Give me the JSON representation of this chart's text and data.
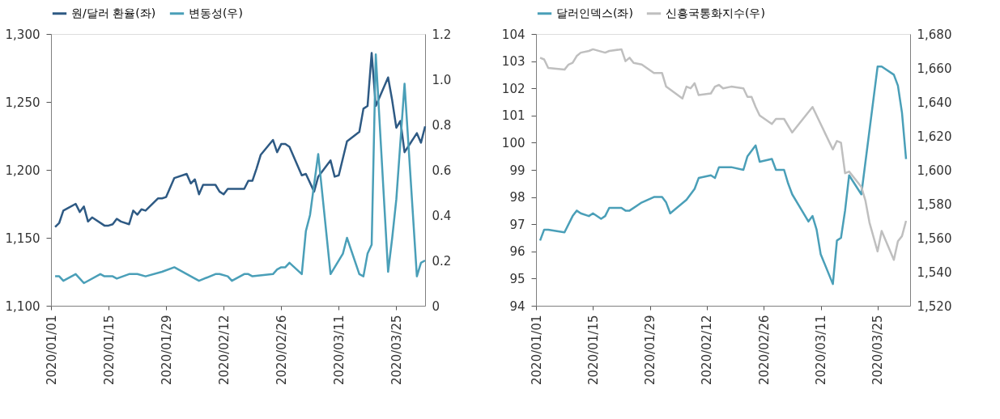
{
  "chart_data": [
    {
      "type": "line",
      "legend": "top",
      "grid": false,
      "marker": "none",
      "line_style": "solid",
      "xlim": [
        "2020-01-01",
        "2020-04-01"
      ],
      "xticks": [
        {
          "value": "2020-01-01",
          "label": "2020/01/01"
        },
        {
          "value": "2020-01-15",
          "label": "2020/01/15"
        },
        {
          "value": "2020-01-29",
          "label": "2020/01/29"
        },
        {
          "value": "2020-02-12",
          "label": "2020/02/12"
        },
        {
          "value": "2020-02-26",
          "label": "2020/02/26"
        },
        {
          "value": "2020-03-11",
          "label": "2020/03/11"
        },
        {
          "value": "2020-03-25",
          "label": "2020/03/25"
        }
      ],
      "ylim": [
        1100,
        1300
      ],
      "yticks": [
        {
          "value": 1100,
          "label": "1,100"
        },
        {
          "value": 1150,
          "label": "1,150"
        },
        {
          "value": 1200,
          "label": "1,200"
        },
        {
          "value": 1250,
          "label": "1,250"
        },
        {
          "value": 1300,
          "label": "1,300"
        }
      ],
      "y2lim": [
        0,
        1.2
      ],
      "y2ticks": [
        0,
        0.2,
        0.4,
        0.6,
        0.8,
        {
          "value": 1,
          "label": "1.0"
        },
        1.2
      ],
      "series": [
        {
          "name": "원/달러 환율(좌)",
          "color": "#2e5a84",
          "axis": "y",
          "x": [
            "2020-01-02",
            "2020-01-03",
            "2020-01-04",
            "2020-01-07",
            "2020-01-08",
            "2020-01-09",
            "2020-01-10",
            "2020-01-11",
            "2020-01-14",
            "2020-01-15",
            "2020-01-16",
            "2020-01-17",
            "2020-01-18",
            "2020-01-20",
            "2020-01-21",
            "2020-01-22",
            "2020-01-23",
            "2020-01-24",
            "2020-01-27",
            "2020-01-28",
            "2020-01-29",
            "2020-01-30",
            "2020-01-31",
            "2020-02-03",
            "2020-02-04",
            "2020-02-05",
            "2020-02-06",
            "2020-02-07",
            "2020-02-10",
            "2020-02-11",
            "2020-02-12",
            "2020-02-13",
            "2020-02-17",
            "2020-02-18",
            "2020-02-19",
            "2020-02-20",
            "2020-02-21",
            "2020-02-24",
            "2020-02-25",
            "2020-02-26",
            "2020-02-27",
            "2020-02-28",
            "2020-03-02",
            "2020-03-03",
            "2020-03-05",
            "2020-03-06",
            "2020-03-09",
            "2020-03-10",
            "2020-03-11",
            "2020-03-13",
            "2020-03-16",
            "2020-03-17",
            "2020-03-18",
            "2020-03-19",
            "2020-03-20",
            "2020-03-23",
            "2020-03-24",
            "2020-03-25",
            "2020-03-26",
            "2020-03-27",
            "2020-03-30",
            "2020-03-31",
            "2020-04-01"
          ],
          "values": [
            1158,
            1161,
            1170,
            1175,
            1169,
            1173,
            1162,
            1165,
            1159,
            1159,
            1160,
            1164,
            1162,
            1160,
            1170,
            1167,
            1171,
            1170,
            1179,
            1179,
            1180,
            1187,
            1194,
            1197,
            1190,
            1193,
            1182,
            1189,
            1189,
            1184,
            1182,
            1186,
            1186,
            1192,
            1192,
            1201,
            1211,
            1222,
            1213,
            1219,
            1219,
            1217,
            1196,
            1197,
            1184,
            1195,
            1207,
            1195,
            1196,
            1221,
            1228,
            1245,
            1247,
            1286,
            1247,
            1268,
            1251,
            1231,
            1236,
            1213,
            1227,
            1220,
            1232
          ]
        },
        {
          "name": "변동성(우)",
          "color": "#4a9fb8",
          "axis": "y2",
          "x": [
            "2020-01-02",
            "2020-01-03",
            "2020-01-04",
            "2020-01-07",
            "2020-01-08",
            "2020-01-09",
            "2020-01-13",
            "2020-01-14",
            "2020-01-16",
            "2020-01-17",
            "2020-01-20",
            "2020-01-21",
            "2020-01-22",
            "2020-01-24",
            "2020-01-28",
            "2020-01-31",
            "2020-02-05",
            "2020-02-06",
            "2020-02-10",
            "2020-02-11",
            "2020-02-13",
            "2020-02-14",
            "2020-02-17",
            "2020-02-18",
            "2020-02-19",
            "2020-02-24",
            "2020-02-25",
            "2020-02-26",
            "2020-02-27",
            "2020-02-28",
            "2020-03-02",
            "2020-03-03",
            "2020-03-04",
            "2020-03-06",
            "2020-03-09",
            "2020-03-12",
            "2020-03-13",
            "2020-03-16",
            "2020-03-17",
            "2020-03-18",
            "2020-03-19",
            "2020-03-20",
            "2020-03-23",
            "2020-03-24",
            "2020-03-25",
            "2020-03-27",
            "2020-03-30",
            "2020-03-31",
            "2020-04-01"
          ],
          "values": [
            0.13,
            0.13,
            0.11,
            0.14,
            0.12,
            0.1,
            0.14,
            0.13,
            0.13,
            0.12,
            0.14,
            0.14,
            0.14,
            0.13,
            0.15,
            0.17,
            0.12,
            0.11,
            0.14,
            0.14,
            0.13,
            0.11,
            0.14,
            0.14,
            0.13,
            0.14,
            0.16,
            0.17,
            0.17,
            0.19,
            0.14,
            0.33,
            0.4,
            0.67,
            0.14,
            0.23,
            0.3,
            0.14,
            0.13,
            0.23,
            0.27,
            1.11,
            0.15,
            0.3,
            0.47,
            0.98,
            0.13,
            0.19,
            0.2
          ]
        }
      ]
    },
    {
      "type": "line",
      "legend": "top",
      "grid": false,
      "marker": "none",
      "line_style": "solid",
      "xlim": [
        "2020-01-01",
        "2020-04-02"
      ],
      "xticks": [
        {
          "value": "2020-01-01",
          "label": "2020/01/01"
        },
        {
          "value": "2020-01-15",
          "label": "2020/01/15"
        },
        {
          "value": "2020-01-29",
          "label": "2020/01/29"
        },
        {
          "value": "2020-02-12",
          "label": "2020/02/12"
        },
        {
          "value": "2020-02-26",
          "label": "2020/02/26"
        },
        {
          "value": "2020-03-11",
          "label": "2020/03/11"
        },
        {
          "value": "2020-03-25",
          "label": "2020/03/25"
        }
      ],
      "ylim": [
        94,
        104
      ],
      "yticks": [
        94,
        95,
        96,
        97,
        98,
        99,
        100,
        101,
        102,
        103,
        104
      ],
      "y2lim": [
        1520,
        1680
      ],
      "y2ticks": [
        {
          "value": 1520,
          "label": "1,520"
        },
        {
          "value": 1540,
          "label": "1,540"
        },
        {
          "value": 1560,
          "label": "1,560"
        },
        {
          "value": 1580,
          "label": "1,580"
        },
        {
          "value": 1600,
          "label": "1,600"
        },
        {
          "value": 1620,
          "label": "1,620"
        },
        {
          "value": 1640,
          "label": "1,640"
        },
        {
          "value": 1660,
          "label": "1,660"
        },
        {
          "value": 1680,
          "label": "1,680"
        }
      ],
      "series": [
        {
          "name": "달러인덱스(좌)",
          "color": "#4a9fb8",
          "axis": "y",
          "x": [
            "2020-01-02",
            "2020-01-03",
            "2020-01-04",
            "2020-01-08",
            "2020-01-10",
            "2020-01-11",
            "2020-01-12",
            "2020-01-14",
            "2020-01-15",
            "2020-01-17",
            "2020-01-18",
            "2020-01-19",
            "2020-01-22",
            "2020-01-23",
            "2020-01-24",
            "2020-01-27",
            "2020-01-30",
            "2020-01-31",
            "2020-02-01",
            "2020-02-02",
            "2020-02-03",
            "2020-02-07",
            "2020-02-09",
            "2020-02-10",
            "2020-02-13",
            "2020-02-14",
            "2020-02-15",
            "2020-02-18",
            "2020-02-21",
            "2020-02-22",
            "2020-02-23",
            "2020-02-24",
            "2020-02-25",
            "2020-02-28",
            "2020-02-29",
            "2020-03-02",
            "2020-03-03",
            "2020-03-04",
            "2020-03-08",
            "2020-03-09",
            "2020-03-10",
            "2020-03-11",
            "2020-03-14",
            "2020-03-15",
            "2020-03-16",
            "2020-03-17",
            "2020-03-18",
            "2020-03-21",
            "2020-03-25",
            "2020-03-26",
            "2020-03-29",
            "2020-03-30",
            "2020-03-31",
            "2020-04-01"
          ],
          "values": [
            96.4,
            96.8,
            96.8,
            96.7,
            97.3,
            97.5,
            97.4,
            97.3,
            97.4,
            97.2,
            97.3,
            97.6,
            97.6,
            97.5,
            97.5,
            97.8,
            98.0,
            98.0,
            98.0,
            97.8,
            97.4,
            97.9,
            98.3,
            98.7,
            98.8,
            98.7,
            99.1,
            99.1,
            99.0,
            99.5,
            99.7,
            99.9,
            99.3,
            99.4,
            99.0,
            99.0,
            98.5,
            98.1,
            97.1,
            97.3,
            96.8,
            95.9,
            94.8,
            96.4,
            96.5,
            97.5,
            98.8,
            98.1,
            102.8,
            102.8,
            102.5,
            102.1,
            101.1,
            99.4
          ]
        },
        {
          "name": "신흥국통화지수(우)",
          "color": "#bfbfbf",
          "axis": "y2",
          "x": [
            "2020-01-02",
            "2020-01-03",
            "2020-01-04",
            "2020-01-08",
            "2020-01-09",
            "2020-01-10",
            "2020-01-11",
            "2020-01-12",
            "2020-01-14",
            "2020-01-15",
            "2020-01-18",
            "2020-01-19",
            "2020-01-22",
            "2020-01-23",
            "2020-01-24",
            "2020-01-25",
            "2020-01-27",
            "2020-01-30",
            "2020-02-01",
            "2020-02-02",
            "2020-02-06",
            "2020-02-07",
            "2020-02-08",
            "2020-02-09",
            "2020-02-10",
            "2020-02-13",
            "2020-02-14",
            "2020-02-15",
            "2020-02-16",
            "2020-02-18",
            "2020-02-21",
            "2020-02-22",
            "2020-02-23",
            "2020-02-24",
            "2020-02-25",
            "2020-02-28",
            "2020-02-29",
            "2020-03-02",
            "2020-03-04",
            "2020-03-09",
            "2020-03-11",
            "2020-03-14",
            "2020-03-15",
            "2020-03-16",
            "2020-03-17",
            "2020-03-18",
            "2020-03-21",
            "2020-03-22",
            "2020-03-23",
            "2020-03-25",
            "2020-03-26",
            "2020-03-29",
            "2020-03-30",
            "2020-03-31",
            "2020-04-01"
          ],
          "values": [
            1666,
            1665,
            1660,
            1659,
            1662,
            1663,
            1667,
            1669,
            1670,
            1671,
            1669,
            1670,
            1671,
            1664,
            1666,
            1663,
            1662,
            1657,
            1657,
            1649,
            1642,
            1649,
            1648,
            1651,
            1644,
            1645,
            1649,
            1650,
            1648,
            1649,
            1648,
            1643,
            1643,
            1637,
            1632,
            1627,
            1630,
            1630,
            1622,
            1637,
            1627,
            1612,
            1617,
            1616,
            1598,
            1599,
            1590,
            1582,
            1569,
            1552,
            1564,
            1547,
            1558,
            1561,
            1570
          ]
        }
      ]
    }
  ]
}
